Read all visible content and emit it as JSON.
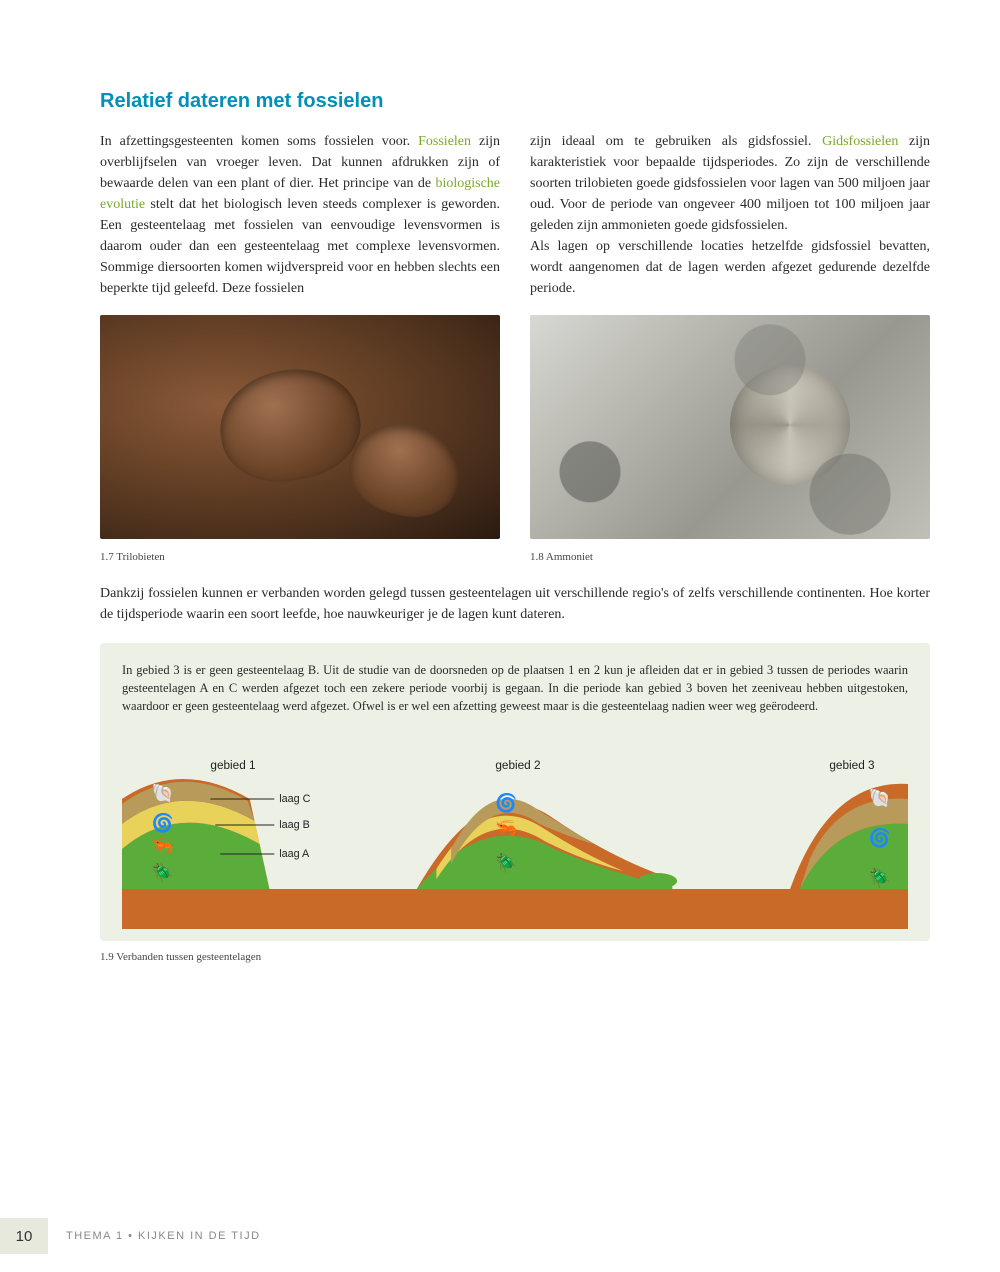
{
  "section_title": "Relatief dateren met fossielen",
  "col1_parts": [
    {
      "t": "In afzettingsgesteenten komen soms fossielen voor. "
    },
    {
      "t": "Fossielen",
      "cls": "term"
    },
    {
      "t": " zijn overblijfselen van vroeger leven. Dat kunnen afdrukken zijn of bewaarde delen van een plant of dier. Het principe van de "
    },
    {
      "t": "biologische evolutie",
      "cls": "term"
    },
    {
      "t": " stelt dat het biologisch leven steeds complexer is geworden. Een gesteentelaag met fossielen van eenvoudige levensvormen is daarom ouder dan een gesteentelaag met complexe levensvormen. Sommige diersoorten komen wijdverspreid voor en hebben slechts een beperkte tijd geleefd. Deze fossielen"
    }
  ],
  "col2_parts": [
    {
      "t": "zijn ideaal om te gebruiken als gidsfossiel. "
    },
    {
      "t": "Gidsfossielen",
      "cls": "term"
    },
    {
      "t": " zijn karakteristiek voor bepaalde tijdsperiodes. Zo zijn de verschillende soorten trilobieten goede gidsfossielen voor lagen van 500 miljoen jaar oud. Voor de periode van ongeveer 400 miljoen tot 100 miljoen jaar geleden zijn ammonieten goede gidsfossielen.\nAls lagen op verschillende locaties hetzelfde gidsfossiel bevatten, wordt aangenomen dat de lagen werden afgezet gedurende dezelfde periode."
    }
  ],
  "caption_left": "1.7  Trilobieten",
  "caption_right": "1.8  Ammoniet",
  "full_para": "Dankzij fossielen kunnen er verbanden worden gelegd tussen gesteentelagen uit verschillende regio's of zelfs verschillende continenten. Hoe korter de tijdsperiode waarin een soort leefde, hoe nauwkeuriger je de lagen kunt dateren.",
  "info_box_text": "In gebied 3 is er geen gesteentelaag B. Uit de studie van de doorsneden op de plaatsen 1 en 2 kun je afleiden dat er in gebied 3 tussen de periodes waarin gesteentelagen A en C werden afgezet toch een zekere periode voorbij is gegaan. In die periode kan gebied 3 boven het zeeniveau hebben uitgestoken, waardoor er geen gesteentelaag werd afgezet. Ofwel is er wel een afzetting geweest maar is die gesteentelaag nadien weer weg geërodeerd.",
  "diagram": {
    "bg_box": "#edf0e4",
    "colors": {
      "bedrock": "#c96a28",
      "laagA": "#5aad3a",
      "laagB": "#e8d25a",
      "laagC": "#b89a5a",
      "line": "#222222"
    },
    "gebied_labels": [
      "gebied 1",
      "gebied 2",
      "gebied 3"
    ],
    "laag_labels": [
      "laag C",
      "laag B",
      "laag A"
    ]
  },
  "diagram_caption": "1.9  Verbanden tussen gesteentelagen",
  "page_number": "10",
  "footer_theme": "THEMA 1 • KIJKEN IN DE TIJD"
}
